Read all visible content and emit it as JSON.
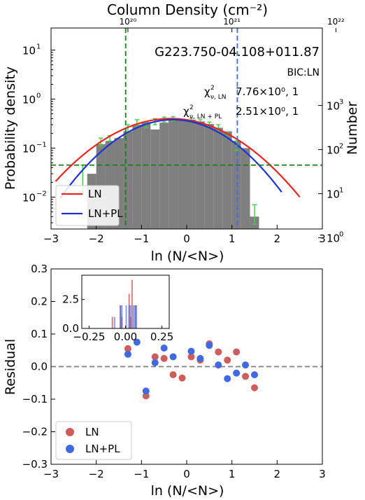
{
  "chart_data": [
    {
      "type": "bar",
      "title": "G223.750-04.108+011.87",
      "top_xlabel": "Column Density (cm⁻²)",
      "top_ticks": [
        "10²⁰",
        "10²¹",
        "10²²"
      ],
      "top_tick_positions": [
        -1.3,
        1.0,
        3.3
      ],
      "xlabel": "ln (N/<N>)",
      "ylabel": "Probability density",
      "y2label": "Number",
      "xlim": [
        -3,
        3
      ],
      "ylim_log10": [
        -2.65,
        1.45
      ],
      "xticks": [
        "−3",
        "−2",
        "−1",
        "0",
        "1",
        "2",
        "3"
      ],
      "xtick_values": [
        -3,
        -2,
        -1,
        0,
        1,
        2,
        3
      ],
      "yticks": [
        {
          "label": "10",
          "exp": "1",
          "log": 1
        },
        {
          "label": "10",
          "exp": "0",
          "log": 0
        },
        {
          "label": "10",
          "exp": "−1",
          "log": -1
        },
        {
          "label": "10",
          "exp": "−2",
          "log": -2
        }
      ],
      "y2ticks": [
        {
          "label": "10",
          "exp": "3",
          "log": -0.13
        },
        {
          "label": "10",
          "exp": "2",
          "log": -1.03
        },
        {
          "label": "10",
          "exp": "1",
          "log": -1.93
        },
        {
          "label": "10",
          "exp": "0",
          "log": -2.83
        }
      ],
      "annotations": {
        "bic": "BIC:LN",
        "chi_ln_prefix": "χ",
        "chi_ln_sub": "ν, LN",
        "chi_ln_value": "7.76×10⁰, 1",
        "chi_pl_prefix": "χ",
        "chi_pl_sub": "ν, LN + PL",
        "chi_pl_value": "2.51×10⁰, 1"
      },
      "histogram": {
        "color": "#7f7f7f",
        "bin_width": 0.2,
        "bins": [
          {
            "x": -2.2,
            "y": 0.03
          },
          {
            "x": -2.0,
            "y": 0.12
          },
          {
            "x": -1.8,
            "y": 0.14
          },
          {
            "x": -1.6,
            "y": 0.16
          },
          {
            "x": -1.4,
            "y": 0.22
          },
          {
            "x": -1.2,
            "y": 0.3
          },
          {
            "x": -1.0,
            "y": 0.34
          },
          {
            "x": -0.8,
            "y": 0.24
          },
          {
            "x": -0.6,
            "y": 0.33
          },
          {
            "x": -0.4,
            "y": 0.38
          },
          {
            "x": -0.2,
            "y": 0.39
          },
          {
            "x": 0.0,
            "y": 0.38
          },
          {
            "x": 0.2,
            "y": 0.35
          },
          {
            "x": 0.4,
            "y": 0.31
          },
          {
            "x": 0.6,
            "y": 0.26
          },
          {
            "x": 0.8,
            "y": 0.22
          },
          {
            "x": 1.0,
            "y": 0.14
          },
          {
            "x": 1.2,
            "y": 0.1
          },
          {
            "x": 1.4,
            "y": 0.004
          }
        ]
      },
      "errorbars": {
        "color": "#44cc44",
        "points": [
          {
            "x": -2.3,
            "lo": 0.012,
            "hi": 0.045
          },
          {
            "x": -1.9,
            "lo": 0.11,
            "hi": 0.16
          },
          {
            "x": -1.7,
            "lo": 0.14,
            "hi": 0.18
          },
          {
            "x": -1.3,
            "lo": 0.21,
            "hi": 0.3
          },
          {
            "x": -1.1,
            "lo": 0.28,
            "hi": 0.38
          },
          {
            "x": -0.9,
            "lo": 0.26,
            "hi": 0.34
          },
          {
            "x": -0.7,
            "lo": 0.3,
            "hi": 0.4
          },
          {
            "x": -0.5,
            "lo": 0.34,
            "hi": 0.43
          },
          {
            "x": -0.3,
            "lo": 0.36,
            "hi": 0.44
          },
          {
            "x": 0.1,
            "lo": 0.34,
            "hi": 0.41
          },
          {
            "x": 0.3,
            "lo": 0.31,
            "hi": 0.38
          },
          {
            "x": 0.5,
            "lo": 0.28,
            "hi": 0.34
          },
          {
            "x": 0.7,
            "lo": 0.23,
            "hi": 0.3
          },
          {
            "x": 0.9,
            "lo": 0.16,
            "hi": 0.21
          },
          {
            "x": 1.1,
            "lo": 0.09,
            "hi": 0.14
          },
          {
            "x": 1.5,
            "lo": 0.0028,
            "hi": 0.007
          }
        ]
      },
      "series": [
        {
          "name": "LN",
          "color": "#e8251f",
          "mu": -0.35,
          "sigma": 1.05,
          "amp": 0.4,
          "x_range": [
            -2.9,
            2.5
          ]
        },
        {
          "name": "LN+PL",
          "color": "#1f32d6",
          "mu": -0.3,
          "sigma": 0.92,
          "amp": 0.38,
          "x_range": [
            -2.8,
            2.1
          ]
        }
      ],
      "vlines": [
        {
          "x": -1.35,
          "color": "#1a7f1a"
        },
        {
          "x": 1.12,
          "color": "#4169e1"
        }
      ],
      "hline": {
        "y": 0.045,
        "color": "#1a7f1a"
      }
    },
    {
      "type": "scatter",
      "xlabel": "ln (N/<N>)",
      "ylabel": "Residual",
      "xlim": [
        -3,
        3
      ],
      "ylim": [
        -0.3,
        0.3
      ],
      "xticks": [
        "−3",
        "−2",
        "−1",
        "0",
        "1",
        "2",
        "3"
      ],
      "xtick_values": [
        -3,
        -2,
        -1,
        0,
        1,
        2,
        3
      ],
      "yticks": [
        "−0.3",
        "−0.2",
        "−0.1",
        "0.0",
        "0.1",
        "0.2",
        "0.3"
      ],
      "ytick_values": [
        -0.3,
        -0.2,
        -0.1,
        0.0,
        0.1,
        0.2,
        0.3
      ],
      "zero_line_color": "#7f7f7f",
      "series": [
        {
          "name": "LN",
          "color": "#cd5c5c",
          "points": [
            [
              -1.3,
              0.055
            ],
            [
              -0.9,
              -0.09
            ],
            [
              -0.7,
              0.03
            ],
            [
              -0.5,
              0.025
            ],
            [
              -0.3,
              -0.025
            ],
            [
              -0.1,
              -0.035
            ],
            [
              0.1,
              0.03
            ],
            [
              0.3,
              0.02
            ],
            [
              0.5,
              0.07
            ],
            [
              0.7,
              0.045
            ],
            [
              0.9,
              0.02
            ],
            [
              1.1,
              0.045
            ],
            [
              1.3,
              -0.03
            ],
            [
              1.5,
              -0.065
            ]
          ]
        },
        {
          "name": "LN+PL",
          "color": "#4169e1",
          "points": [
            [
              -1.3,
              0.038
            ],
            [
              -1.1,
              0.075
            ],
            [
              -0.9,
              -0.075
            ],
            [
              -0.7,
              0.012
            ],
            [
              -0.5,
              0.057
            ],
            [
              -0.3,
              0.03
            ],
            [
              0.1,
              0.047
            ],
            [
              0.3,
              0.025
            ],
            [
              0.5,
              0.065
            ],
            [
              0.7,
              0.005
            ],
            [
              0.9,
              -0.037
            ],
            [
              1.1,
              -0.02
            ],
            [
              1.3,
              0.005
            ],
            [
              1.5,
              -0.025
            ]
          ]
        }
      ],
      "inset": {
        "type": "histogram",
        "xlim": [
          -0.3,
          0.3
        ],
        "ylim": [
          0,
          4.6
        ],
        "xticks": [
          "−0.25",
          "0.00",
          "0.25"
        ],
        "xtick_values": [
          -0.25,
          0.0,
          0.25
        ],
        "yticks": [
          "0.0",
          "2.5"
        ],
        "ytick_values": [
          0.0,
          2.5
        ],
        "bars_ln": [
          {
            "x0": -0.095,
            "x1": -0.085,
            "h": 1.0
          },
          {
            "x0": -0.04,
            "x1": -0.03,
            "h": 2.0
          },
          {
            "x0": -0.03,
            "x1": -0.02,
            "h": 1.0
          },
          {
            "x0": 0.02,
            "x1": 0.03,
            "h": 3.0
          },
          {
            "x0": 0.03,
            "x1": 0.04,
            "h": 1.0
          },
          {
            "x0": 0.04,
            "x1": 0.05,
            "h": 4.2
          },
          {
            "x0": 0.065,
            "x1": 0.075,
            "h": 2.0
          }
        ],
        "bars_pl": [
          {
            "x0": -0.08,
            "x1": -0.07,
            "h": 1.0
          },
          {
            "x0": -0.04,
            "x1": -0.02,
            "h": 2.0
          },
          {
            "x0": 0.0,
            "x1": 0.01,
            "h": 2.0
          },
          {
            "x0": 0.02,
            "x1": 0.04,
            "h": 2.0
          },
          {
            "x0": 0.05,
            "x1": 0.06,
            "h": 2.0
          },
          {
            "x0": 0.06,
            "x1": 0.08,
            "h": 2.0
          }
        ]
      }
    }
  ]
}
